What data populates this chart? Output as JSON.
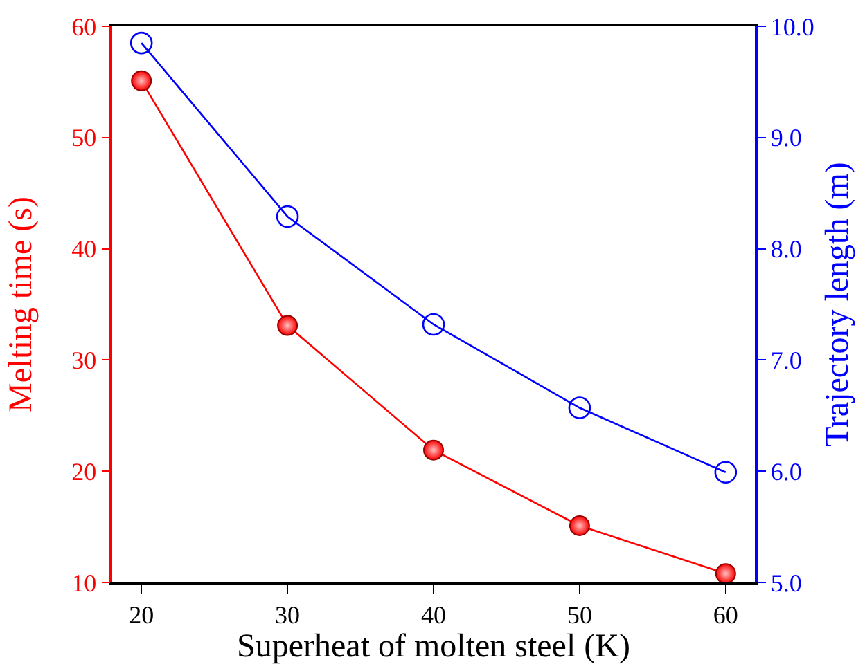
{
  "chart_data": {
    "type": "line",
    "xlabel": "Superheat of molten steel (K)",
    "ylabel": "Melting time (s)",
    "y2label": "Trajectory length (m)",
    "x": [
      20,
      30,
      40,
      50,
      60
    ],
    "series": [
      {
        "color": "#ff0000",
        "values": [
          55.1,
          33.1,
          21.9,
          15.1,
          10.8
        ],
        "marker": "circle"
      },
      {
        "color": "#0000ff",
        "values": [
          9.85,
          8.29,
          7.32,
          6.57,
          5.99
        ],
        "axis": "y2",
        "marker": "circle-open"
      }
    ],
    "xlim": [
      18,
      62
    ],
    "xticks": [
      20,
      30,
      40,
      50,
      60
    ],
    "ylim": [
      10,
      60
    ],
    "yticks": [
      10,
      20,
      30,
      40,
      50,
      60
    ],
    "y2lim": [
      5,
      10
    ],
    "y2ticks": [
      {
        "value": 5,
        "label": "5.0"
      },
      {
        "value": 6,
        "label": "6.0"
      },
      {
        "value": 7,
        "label": "7.0"
      },
      {
        "value": 8,
        "label": "8.0"
      },
      {
        "value": 9,
        "label": "9.0"
      },
      {
        "value": 10,
        "label": "10.0"
      }
    ],
    "grid": false,
    "line_style": "solid"
  }
}
